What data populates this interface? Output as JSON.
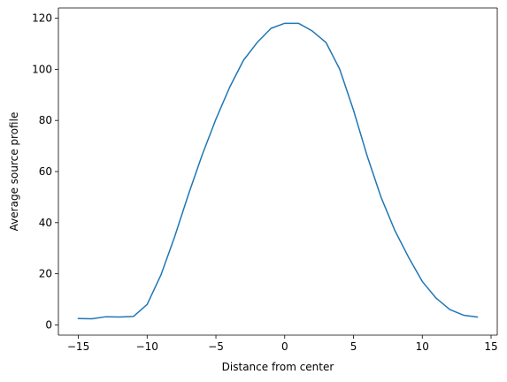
{
  "chart_data": {
    "type": "line",
    "title": "",
    "xlabel": "Distance from center",
    "ylabel": "Average source profile",
    "xlim": [
      -16.45,
      15.45
    ],
    "ylim": [
      -4.0,
      124.0
    ],
    "x_ticks": [
      -15,
      -10,
      -5,
      0,
      5,
      10,
      15
    ],
    "y_ticks": [
      0,
      20,
      40,
      60,
      80,
      100,
      120
    ],
    "grid": false,
    "legend": "none",
    "line_color": "#1f77b4",
    "series": [
      {
        "x": [
          -15,
          -14,
          -13,
          -12,
          -11,
          -10,
          -9,
          -8,
          -7,
          -6,
          -5,
          -4,
          -3,
          -2,
          -1,
          0,
          1,
          2,
          3,
          4,
          5,
          6,
          7,
          8,
          9,
          10,
          11,
          12,
          13,
          14
        ],
        "y": [
          2.5,
          2.4,
          3.2,
          3.1,
          3.3,
          8.0,
          19.5,
          34.5,
          51.0,
          66.5,
          80.5,
          93.0,
          103.5,
          110.5,
          116.0,
          118.0,
          118.0,
          115.0,
          110.5,
          100.0,
          84.0,
          66.0,
          50.0,
          37.0,
          26.5,
          17.0,
          10.5,
          6.0,
          3.8,
          3.1
        ]
      }
    ]
  }
}
